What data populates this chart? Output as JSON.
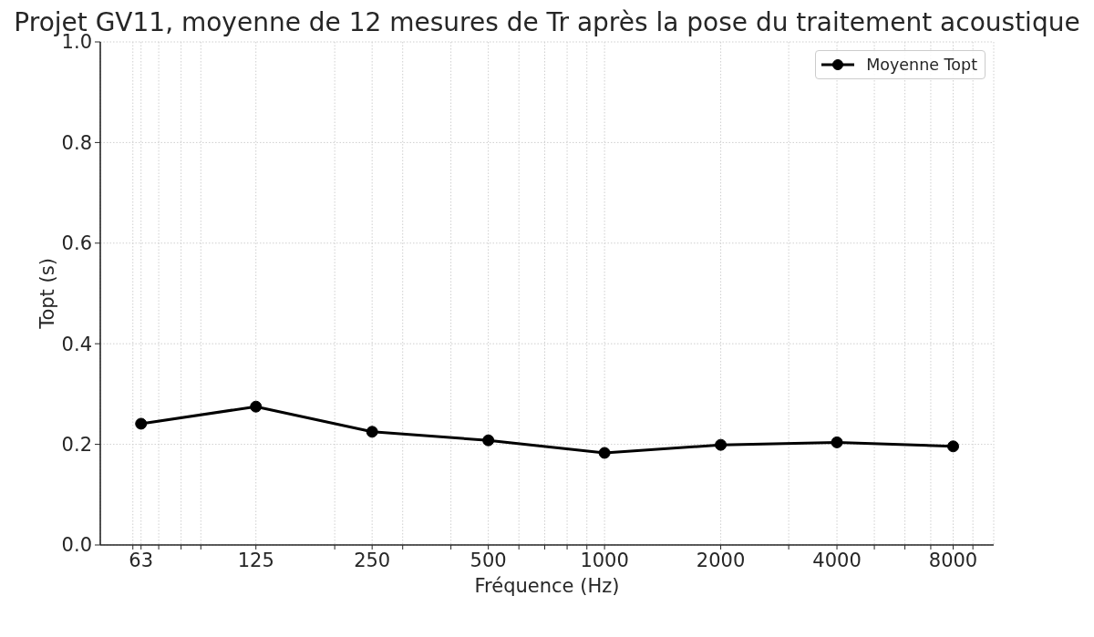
{
  "chart_data": {
    "type": "line",
    "title": "Projet GV11, moyenne de 12 mesures de Tr après la pose du traitement acoustique",
    "xlabel": "Fréquence (Hz)",
    "ylabel": "Topt (s)",
    "x": [
      63,
      125,
      250,
      500,
      1000,
      2000,
      4000,
      8000
    ],
    "series": [
      {
        "name": "Moyenne Topt",
        "color": "#000000",
        "values": [
          0.241,
          0.275,
          0.225,
          0.208,
          0.183,
          0.199,
          0.204,
          0.196
        ]
      }
    ],
    "log": "x",
    "xlim": [
      49.4,
      10190
    ],
    "xticks": [
      {
        "value": 60,
        "label": null
      },
      63,
      {
        "value": 70,
        "label": null
      },
      {
        "value": 80,
        "label": null
      },
      {
        "value": 90,
        "label": null
      },
      125,
      {
        "value": 200,
        "label": null
      },
      250,
      {
        "value": 300,
        "label": null
      },
      {
        "value": 400,
        "label": null
      },
      500,
      {
        "value": 600,
        "label": null
      },
      {
        "value": 700,
        "label": null
      },
      {
        "value": 800,
        "label": null
      },
      {
        "value": 900,
        "label": null
      },
      1000,
      2000,
      {
        "value": 3000,
        "label": null
      },
      4000,
      {
        "value": 5000,
        "label": null
      },
      {
        "value": 6000,
        "label": null
      },
      {
        "value": 7000,
        "label": null
      },
      8000,
      {
        "value": 9000,
        "label": null
      }
    ],
    "ylim": [
      0,
      1
    ],
    "yticks": [
      {
        "value": 0,
        "label": "0.0"
      },
      0.2,
      0.4,
      0.6,
      0.8,
      {
        "value": 1,
        "label": "1.0"
      }
    ],
    "grid": true,
    "legend": "top right",
    "marker": "circle",
    "line_style": "solid"
  }
}
